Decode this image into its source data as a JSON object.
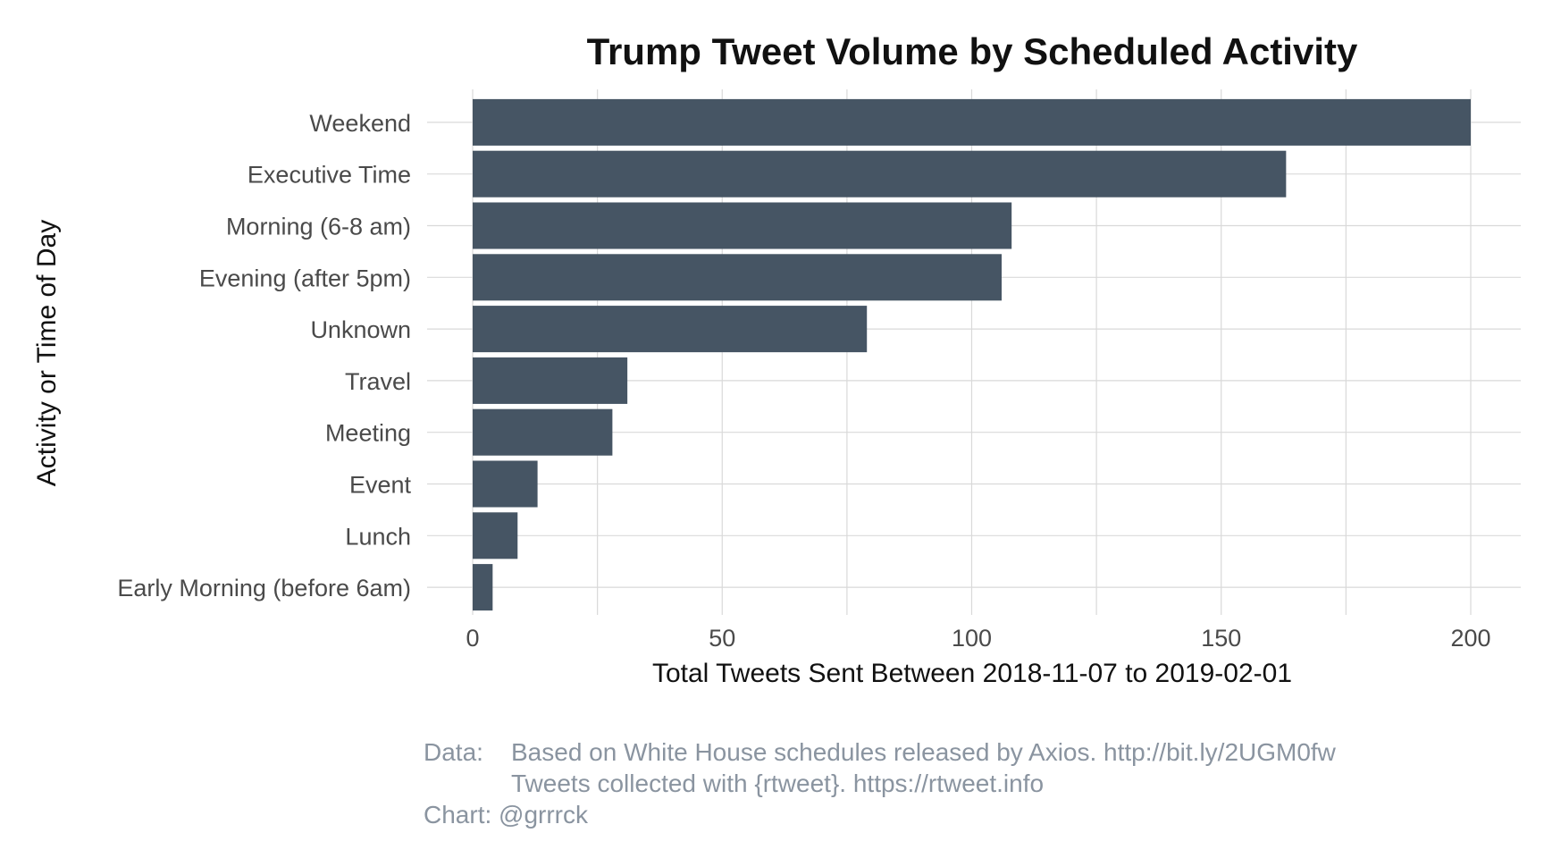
{
  "chart_data": {
    "type": "bar",
    "orientation": "horizontal",
    "title": "Trump Tweet Volume by Scheduled Activity",
    "xlabel": "Total Tweets Sent Between 2018-11-07 to 2019-02-01",
    "ylabel": "Activity or Time of Day",
    "categories": [
      "Weekend",
      "Executive Time",
      "Morning (6-8 am)",
      "Evening (after 5pm)",
      "Unknown",
      "Travel",
      "Meeting",
      "Event",
      "Lunch",
      "Early Morning (before 6am)"
    ],
    "values": [
      200,
      163,
      108,
      106,
      79,
      31,
      28,
      13,
      9,
      4
    ],
    "xlim": [
      0,
      210
    ],
    "x_ticks": [
      0,
      50,
      100,
      150,
      200
    ],
    "grid": true,
    "bar_color": "#465564"
  },
  "caption": {
    "data_prefix": "Data:",
    "line1": "Based on White House schedules released by Axios. http://bit.ly/2UGM0fw",
    "line2": "Tweets collected with {rtweet}. https://rtweet.info",
    "line3": "Chart: @grrrck"
  },
  "colors": {
    "bar": "#465564",
    "grid": "#d9d9d9",
    "caption": "#8a94a0"
  }
}
